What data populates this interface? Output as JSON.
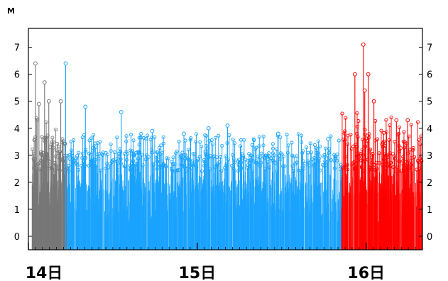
{
  "chart_data": {
    "type": "line",
    "title": "",
    "ylabel": "M",
    "ylim": [
      -0.5,
      7.7
    ],
    "xlim": [
      0,
      56
    ],
    "ytick_labels": [
      "0",
      "1",
      "2",
      "3",
      "4",
      "5",
      "6",
      "7"
    ],
    "xtick_labels": [
      {
        "label": "14日",
        "hour": 0
      },
      {
        "label": "15日",
        "hour": 24
      },
      {
        "label": "16日",
        "hour": 48
      }
    ],
    "mark_style": "stem with circle marker",
    "grid": false,
    "colors": {
      "earlier": "#777777",
      "day15": "#1aa3ff",
      "recent": "#ff0000"
    },
    "segments": [
      {
        "color": "earlier",
        "x_range": [
          0.5,
          5.5
        ],
        "count": 260,
        "max_magnitude": 6.4
      },
      {
        "color": "day15",
        "x_range": [
          5.5,
          44.5
        ],
        "count": 1500,
        "max_magnitude": 6.4
      },
      {
        "color": "recent",
        "x_range": [
          44.5,
          56
        ],
        "count": 420,
        "max_magnitude": 7.1
      }
    ],
    "notable_events": [
      {
        "x": 1.0,
        "y": 6.4,
        "color": "earlier"
      },
      {
        "x": 2.3,
        "y": 5.7,
        "color": "earlier"
      },
      {
        "x": 2.9,
        "y": 5.0,
        "color": "earlier"
      },
      {
        "x": 4.6,
        "y": 5.0,
        "color": "earlier"
      },
      {
        "x": 1.5,
        "y": 4.9,
        "color": "earlier"
      },
      {
        "x": 5.3,
        "y": 6.4,
        "color": "day15"
      },
      {
        "x": 8.1,
        "y": 4.8,
        "color": "day15"
      },
      {
        "x": 13.2,
        "y": 4.6,
        "color": "day15"
      },
      {
        "x": 17.6,
        "y": 3.9,
        "color": "day15"
      },
      {
        "x": 22.1,
        "y": 3.8,
        "color": "day15"
      },
      {
        "x": 25.6,
        "y": 4.0,
        "color": "day15"
      },
      {
        "x": 28.3,
        "y": 4.1,
        "color": "day15"
      },
      {
        "x": 35.5,
        "y": 3.8,
        "color": "day15"
      },
      {
        "x": 42.6,
        "y": 3.6,
        "color": "day15"
      },
      {
        "x": 46.4,
        "y": 6.0,
        "color": "recent"
      },
      {
        "x": 47.6,
        "y": 7.1,
        "color": "recent"
      },
      {
        "x": 48.3,
        "y": 6.0,
        "color": "recent"
      },
      {
        "x": 47.8,
        "y": 5.4,
        "color": "recent"
      },
      {
        "x": 49.1,
        "y": 5.0,
        "color": "recent"
      },
      {
        "x": 52.3,
        "y": 4.3,
        "color": "recent"
      },
      {
        "x": 53.9,
        "y": 4.3,
        "color": "recent"
      }
    ]
  }
}
